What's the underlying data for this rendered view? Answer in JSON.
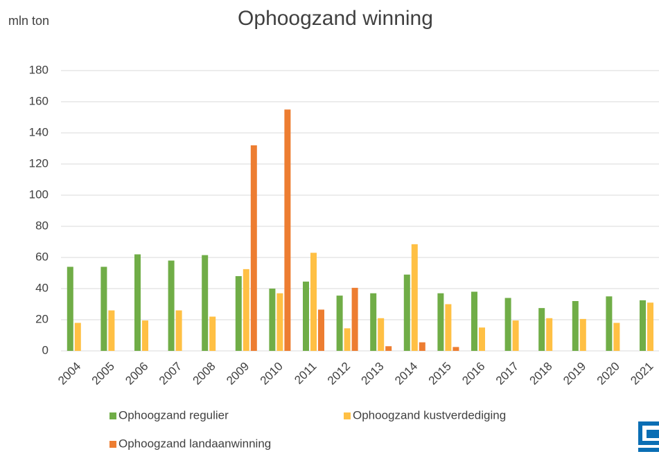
{
  "chart_data": {
    "type": "bar",
    "title": "Ophoogzand winning",
    "y_label": "mln ton",
    "categories": [
      "2004",
      "2005",
      "2006",
      "2007",
      "2008",
      "2009",
      "2010",
      "2011",
      "2012",
      "2013",
      "2014",
      "2015",
      "2016",
      "2017",
      "2018",
      "2019",
      "2020",
      "2021"
    ],
    "series": [
      {
        "name": "Ophoogzand regulier",
        "color": "#70ad47",
        "values": [
          54,
          54,
          62,
          58,
          61.5,
          48,
          40,
          44.5,
          35.5,
          37,
          49,
          37,
          38,
          34,
          27.5,
          32,
          35,
          32.5
        ]
      },
      {
        "name": "Ophoogzand kustverdediging",
        "color": "#ffc044",
        "values": [
          18,
          26,
          19.5,
          26,
          22,
          52.5,
          37,
          63,
          14.5,
          21,
          68.5,
          30,
          15,
          19.5,
          21,
          20.5,
          18,
          31
        ]
      },
      {
        "name": "Ophoogzand landaanwinning",
        "color": "#ed7d31",
        "values": [
          null,
          null,
          null,
          null,
          null,
          132,
          155,
          26.5,
          40.5,
          3,
          5.5,
          2.5,
          null,
          null,
          null,
          null,
          null,
          null
        ]
      }
    ],
    "ylim": [
      0,
      180
    ],
    "yticks": [
      0,
      20,
      40,
      60,
      80,
      100,
      120,
      140,
      160,
      180
    ],
    "grid": true
  }
}
